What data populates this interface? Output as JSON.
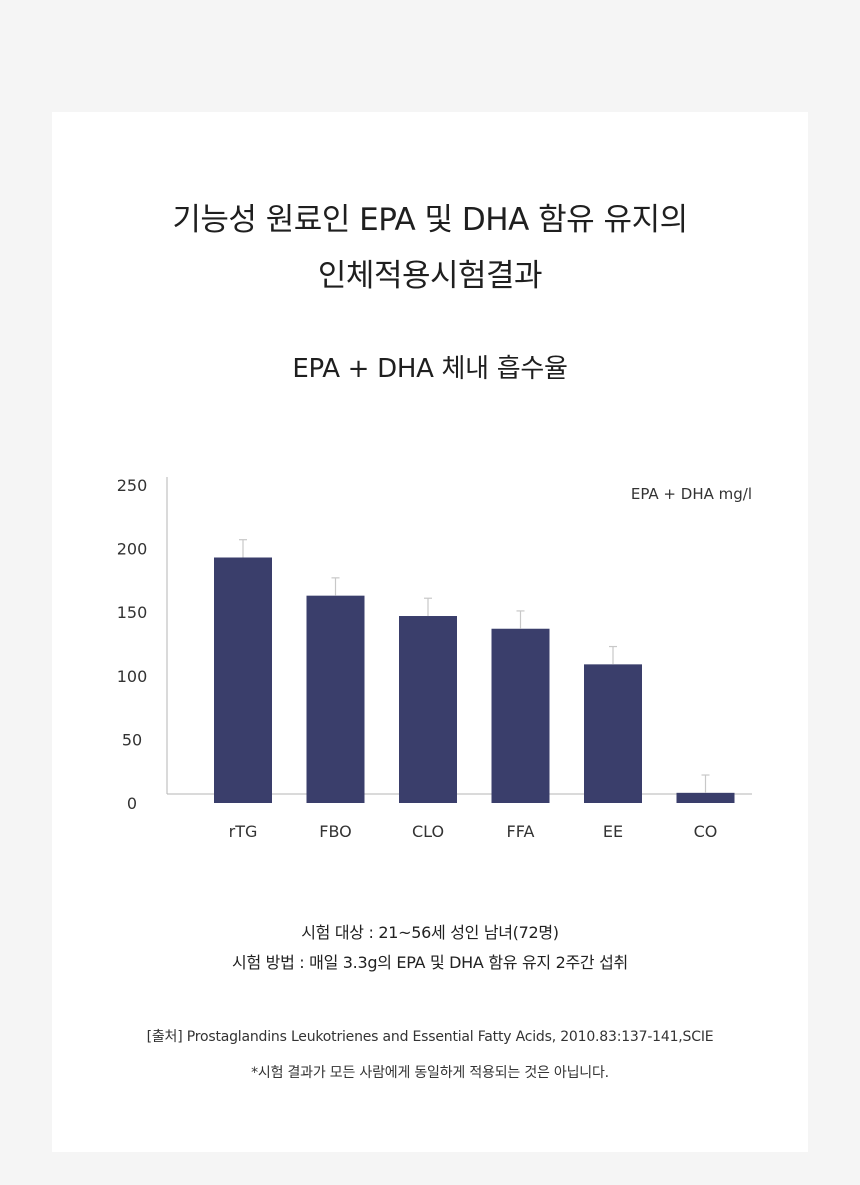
{
  "header": {
    "title_line1": "기능성 원료인 EPA 및 DHA 함유 유지의",
    "title_line2": "인체적용시험결과",
    "subtitle": "EPA + DHA 체내 흡수율"
  },
  "chart_data": {
    "type": "bar",
    "title": "",
    "unit_label": "EPA + DHA mg/l",
    "categories": [
      "rTG",
      "FBO",
      "CLO",
      "FFA",
      "EE",
      "CO"
    ],
    "values": [
      193,
      163,
      147,
      137,
      109,
      8
    ],
    "error": [
      14,
      14,
      14,
      14,
      14,
      14
    ],
    "ylim": [
      0,
      250
    ],
    "yticks": [
      0,
      50,
      100,
      150,
      200,
      250
    ],
    "bar_color": "#3a3e6b",
    "error_color": "#c8c8c8",
    "grid": false
  },
  "notes": {
    "line1": "시험 대상 : 21~56세 성인 남녀(72명)",
    "line2": "시험 방법 : 매일 3.3g의 EPA 및 DHA 함유 유지 2주간 섭취"
  },
  "source": "[출처] Prostaglandins Leukotrienes and Essential Fatty Acids, 2010.83:137-141,SCIE",
  "disclaimer": "*시험 결과가 모든 사람에게 동일하게 적용되는 것은 아닙니다."
}
